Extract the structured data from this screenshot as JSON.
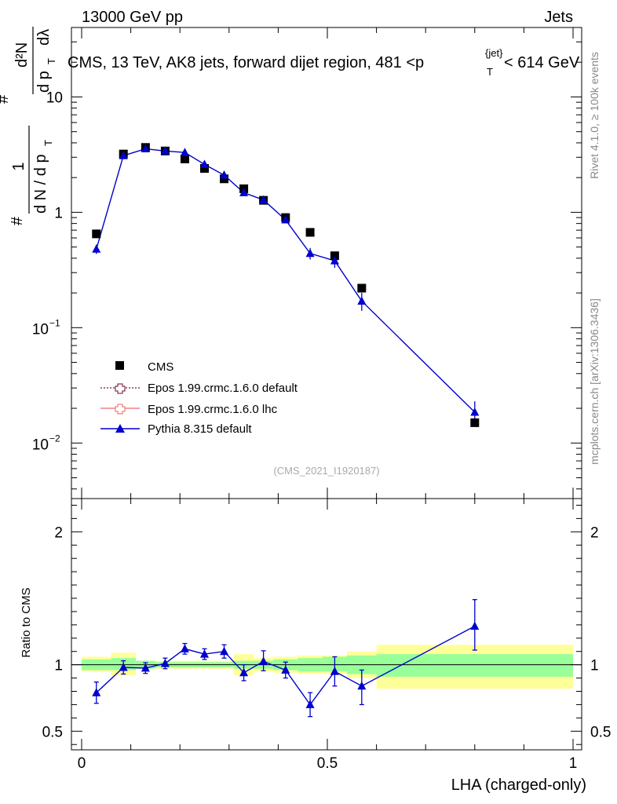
{
  "header": {
    "left": "13000 GeV pp",
    "right": "Jets"
  },
  "chart_data": {
    "type": "scatter",
    "title": "CMS, 13 TeV, AK8 jets, forward dijet region, 481 <p",
    "title_sup": "{jet}",
    "title_sub": "T",
    "title_end": "< 614 GeV",
    "ylabel": {
      "hash1": "#",
      "one": "1",
      "dN": "d N / d p",
      "sub": "T",
      "hash2": "#",
      "d2N": "d²N",
      "dpt": "d p",
      "dlambda": "dλ"
    },
    "xlabel": "LHA (charged-only)",
    "ratio_ylabel": "Ratio to CMS",
    "watermark": "(CMS_2021_I1920187)",
    "side_text_top": "Rivet 4.1.0, ≥ 100k events",
    "side_text_bottom": "mcplots.cern.ch [arXiv:1306.3436]",
    "xlim": [
      0,
      1
    ],
    "ylim": [
      0.0033,
      40
    ],
    "yscale": "log",
    "ratio_ylim": [
      0.36,
      2.25
    ],
    "x_ticks": [
      "0",
      "0.5",
      "1"
    ],
    "y_ticks": [
      {
        "base": "10",
        "exp": "−2"
      },
      {
        "base": "10",
        "exp": "−1"
      },
      {
        "base": "1",
        "exp": ""
      },
      {
        "base": "10",
        "exp": ""
      }
    ],
    "ratio_ticks": [
      "0.5",
      "1",
      "2"
    ],
    "legend": [
      {
        "label": "CMS",
        "color": "#000000",
        "marker": "square"
      },
      {
        "label": "Epos 1.99.crmc.1.6.0 default",
        "color": "#8b3a50",
        "marker": "open-cross",
        "line": "dotted"
      },
      {
        "label": "Epos 1.99.crmc.1.6.0 lhc",
        "color": "#f08080",
        "marker": "open-cross",
        "line": "solid"
      },
      {
        "label": "Pythia 8.315 default",
        "color": "#0000cc",
        "marker": "triangle",
        "line": "solid"
      }
    ],
    "bin_edges": [
      0.0,
      0.06,
      0.11,
      0.15,
      0.19,
      0.23,
      0.27,
      0.31,
      0.35,
      0.39,
      0.44,
      0.49,
      0.54,
      0.6,
      1.0
    ],
    "x": [
      0.03,
      0.085,
      0.13,
      0.17,
      0.21,
      0.25,
      0.29,
      0.33,
      0.37,
      0.415,
      0.465,
      0.515,
      0.57,
      0.8
    ],
    "series": [
      {
        "name": "CMS",
        "values": [
          0.65,
          3.2,
          3.65,
          3.4,
          2.9,
          2.4,
          1.95,
          1.6,
          1.27,
          0.9,
          0.67,
          0.42,
          0.22,
          0.015
        ]
      },
      {
        "name": "Pythia 8.315 default",
        "values": [
          0.48,
          3.1,
          3.55,
          3.4,
          3.3,
          2.6,
          2.1,
          1.48,
          1.28,
          0.86,
          0.44,
          0.38,
          0.17,
          0.0185
        ],
        "errors": [
          0.045,
          0.1,
          0.1,
          0.1,
          0.1,
          0.08,
          0.07,
          0.06,
          0.05,
          0.05,
          0.05,
          0.05,
          0.03,
          0.0045
        ]
      }
    ],
    "ratio": {
      "values": [
        0.79,
        0.98,
        0.975,
        1.01,
        1.12,
        1.08,
        1.1,
        0.94,
        1.025,
        0.96,
        0.7,
        0.95,
        0.84,
        1.29
      ],
      "err_up": [
        0.08,
        0.05,
        0.04,
        0.04,
        0.04,
        0.04,
        0.05,
        0.06,
        0.08,
        0.06,
        0.09,
        0.11,
        0.12,
        0.2
      ],
      "err_down": [
        0.08,
        0.05,
        0.04,
        0.04,
        0.04,
        0.04,
        0.05,
        0.06,
        0.07,
        0.06,
        0.09,
        0.11,
        0.14,
        0.18
      ],
      "band_green": [
        [
          0.96,
          1.04
        ],
        [
          0.96,
          1.05
        ],
        [
          0.97,
          1.03
        ],
        [
          0.98,
          1.02
        ],
        [
          0.98,
          1.02
        ],
        [
          0.98,
          1.02
        ],
        [
          0.98,
          1.02
        ],
        [
          0.97,
          1.03
        ],
        [
          0.97,
          1.03
        ],
        [
          0.96,
          1.04
        ],
        [
          0.95,
          1.05
        ],
        [
          0.95,
          1.06
        ],
        [
          0.93,
          1.07
        ],
        [
          0.91,
          1.08
        ]
      ],
      "band_yellow": [
        [
          0.95,
          1.06
        ],
        [
          0.92,
          1.09
        ],
        [
          0.97,
          1.03
        ],
        [
          0.97,
          1.03
        ],
        [
          0.97,
          1.03
        ],
        [
          0.97,
          1.03
        ],
        [
          0.97,
          1.03
        ],
        [
          0.92,
          1.08
        ],
        [
          0.95,
          1.05
        ],
        [
          0.94,
          1.06
        ],
        [
          0.93,
          1.07
        ],
        [
          0.93,
          1.07
        ],
        [
          0.9,
          1.1
        ],
        [
          0.82,
          1.15
        ]
      ]
    }
  }
}
